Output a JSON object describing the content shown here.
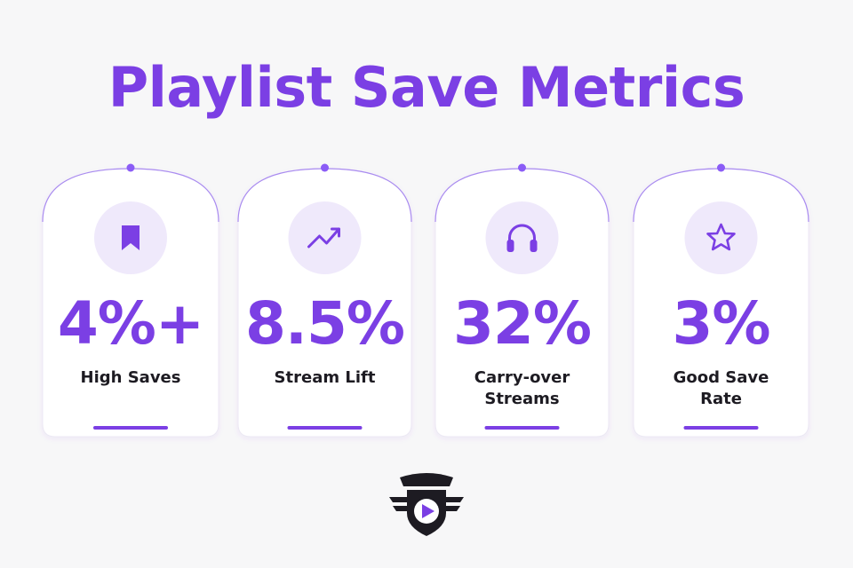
{
  "title": "Playlist Save Metrics",
  "cards": [
    {
      "value": "4%+",
      "label": "High Saves"
    },
    {
      "value": "8.5%",
      "label": "Stream Lift"
    },
    {
      "value": "32%",
      "label": "Carry-over Streams"
    },
    {
      "value": "3%",
      "label": "Good Save Rate"
    }
  ]
}
